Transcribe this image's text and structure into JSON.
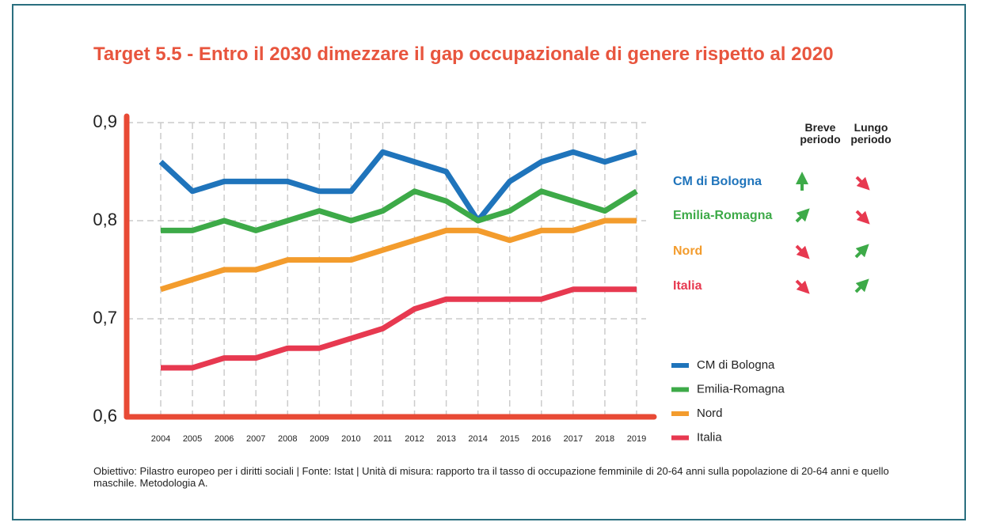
{
  "chart_data": {
    "type": "line",
    "title": "Target 5.5 - Entro il 2030 dimezzare il gap occupazionale di genere rispetto al 2020",
    "categories": [
      "2004",
      "2005",
      "2006",
      "2007",
      "2008",
      "2009",
      "2010",
      "2011",
      "2012",
      "2013",
      "2014",
      "2015",
      "2016",
      "2017",
      "2018",
      "2019"
    ],
    "series": [
      {
        "name": "CM di Bologna",
        "color": "#1f74bb",
        "values": [
          0.86,
          0.83,
          0.84,
          0.84,
          0.84,
          0.83,
          0.83,
          0.87,
          0.86,
          0.85,
          0.8,
          0.84,
          0.86,
          0.87,
          0.86,
          0.87
        ]
      },
      {
        "name": "Emilia-Romagna",
        "color": "#3daa48",
        "values": [
          0.79,
          0.79,
          0.8,
          0.79,
          0.8,
          0.81,
          0.8,
          0.81,
          0.83,
          0.82,
          0.8,
          0.81,
          0.83,
          0.82,
          0.81,
          0.83
        ]
      },
      {
        "name": "Nord",
        "color": "#f39c2d",
        "values": [
          0.73,
          0.74,
          0.75,
          0.75,
          0.76,
          0.76,
          0.76,
          0.77,
          0.78,
          0.79,
          0.79,
          0.78,
          0.79,
          0.79,
          0.8,
          0.8
        ]
      },
      {
        "name": "Italia",
        "color": "#e73950",
        "values": [
          0.65,
          0.65,
          0.66,
          0.66,
          0.67,
          0.67,
          0.68,
          0.69,
          0.71,
          0.72,
          0.72,
          0.72,
          0.72,
          0.73,
          0.73,
          0.73
        ]
      }
    ],
    "ylim": [
      0.6,
      0.9
    ],
    "yticks": [
      {
        "value": 0.6,
        "label": "0,6"
      },
      {
        "value": 0.7,
        "label": "0,7"
      },
      {
        "value": 0.8,
        "label": "0,8"
      },
      {
        "value": 0.9,
        "label": "0,9"
      }
    ],
    "grid": true,
    "trend_headers": [
      "Breve periodo",
      "Lungo periodo"
    ],
    "source": "Obiettivo: Pilastro europeo per i diritti sociali | Fonte: Istat | Unità di misura: rapporto tra il tasso di occupazione femminile di 20-64 anni sulla popolazione di 20-64 anni e quello maschile. Metodologia A."
  }
}
